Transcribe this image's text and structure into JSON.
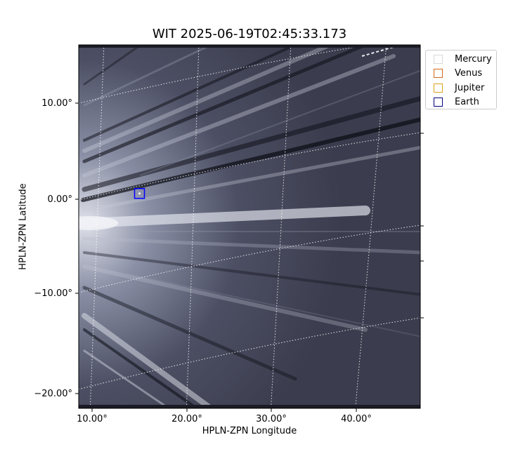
{
  "chart_data": {
    "type": "image",
    "title": "WIT 2025-06-19T02:45:33.173",
    "xlabel": "HPLN-ZPN Longitude",
    "ylabel": "HPLN-ZPN Latitude",
    "x_ticks": [
      "10.00°",
      "20.00°",
      "30.00°",
      "40.00°"
    ],
    "y_ticks": [
      "10.00°",
      "0.00°",
      "−10.00°",
      "−20.00°"
    ],
    "grid": true,
    "grid_style": "dotted",
    "colormap": "bone",
    "legend_position": "outside upper right",
    "legend": [
      {
        "name": "Mercury",
        "color": "#d9d9d9"
      },
      {
        "name": "Venus",
        "color": "#d2691e"
      },
      {
        "name": "Jupiter",
        "color": "#daa520"
      },
      {
        "name": "Earth",
        "color": "#000080"
      }
    ],
    "markers": [
      {
        "name": "Earth",
        "lon": 15.0,
        "lat": 0.6,
        "color": "#0000ff"
      }
    ]
  }
}
